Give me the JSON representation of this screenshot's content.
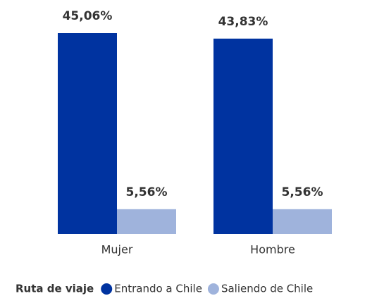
{
  "chart_data": {
    "type": "bar",
    "categories": [
      "Mujer",
      "Hombre"
    ],
    "legend_title": "Ruta de viaje",
    "series": [
      {
        "name": "Entrando a Chile",
        "color": "#0033a0",
        "values": [
          45.06,
          43.83
        ],
        "value_labels": [
          "45,06%",
          "43,83%"
        ]
      },
      {
        "name": "Saliendo de Chile",
        "color": "#9fb3dc",
        "values": [
          5.56,
          5.56
        ],
        "value_labels": [
          "5,56%",
          "5,56%"
        ]
      }
    ]
  }
}
